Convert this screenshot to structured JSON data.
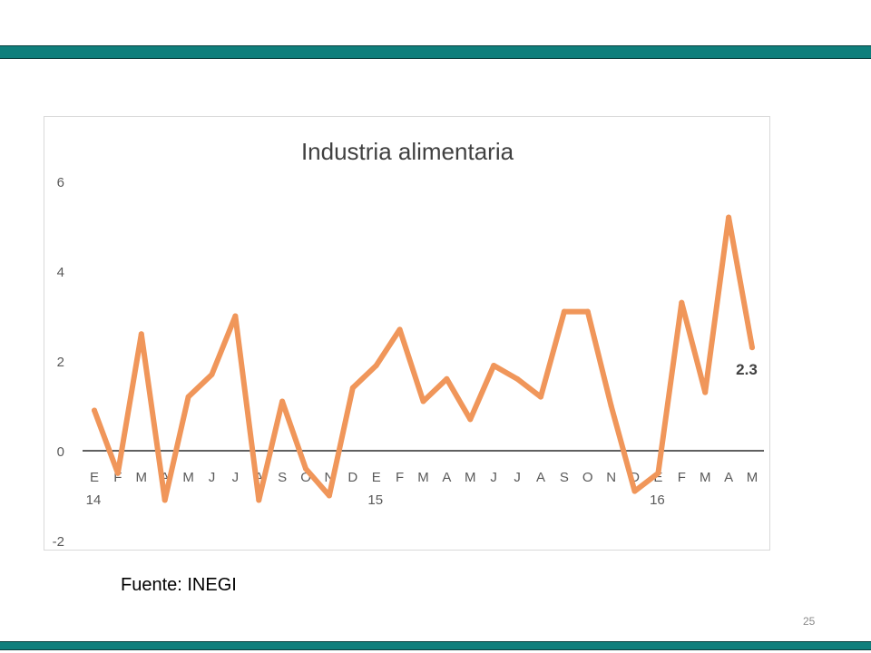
{
  "colors": {
    "band": "#0f7f7c",
    "line": "#f0965a",
    "axis_text": "#595959",
    "zero_line": "#000000"
  },
  "source": "Fuente: INEGI",
  "page_number": "25",
  "chart_data": {
    "type": "line",
    "title": "Industria alimentaria",
    "xlabel": "",
    "ylabel": "",
    "ylim": [
      -2,
      6
    ],
    "yticks": [
      -2,
      0,
      2,
      4,
      6
    ],
    "grid": false,
    "legend": "none",
    "categories": [
      "E",
      "F",
      "M",
      "A",
      "M",
      "J",
      "J",
      "A",
      "S",
      "O",
      "N",
      "D",
      "E",
      "F",
      "M",
      "A",
      "M",
      "J",
      "J",
      "A",
      "S",
      "O",
      "N",
      "D",
      "E",
      "F",
      "M",
      "A",
      "M"
    ],
    "year_labels": [
      {
        "index": 0,
        "label": "14"
      },
      {
        "index": 12,
        "label": "15"
      },
      {
        "index": 24,
        "label": "16"
      }
    ],
    "series": [
      {
        "values": [
          0.9,
          -0.5,
          2.6,
          -1.1,
          1.2,
          1.7,
          3.0,
          -1.1,
          1.1,
          -0.4,
          -1.0,
          1.4,
          1.9,
          2.7,
          1.1,
          1.6,
          0.7,
          1.9,
          1.6,
          1.2,
          3.1,
          3.1,
          1.0,
          -0.9,
          -0.5,
          3.3,
          1.3,
          5.2,
          2.3
        ]
      }
    ],
    "data_labels": [
      {
        "index": 28,
        "label": "2.3"
      }
    ]
  }
}
